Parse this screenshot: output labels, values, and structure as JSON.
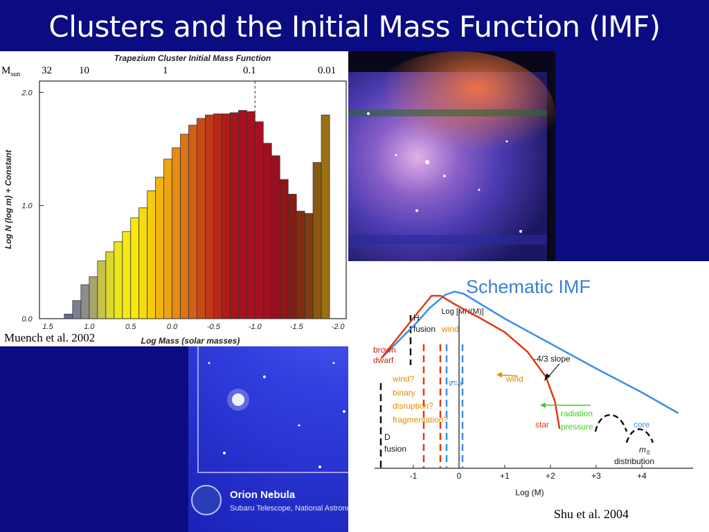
{
  "slide": {
    "title": "Clusters and the Initial Mass Function (IMF)"
  },
  "left_chart": {
    "credit": "Muench et al. 2002",
    "msun_label": "M",
    "msun_sub": "sun",
    "mass_ticks_top": [
      "32",
      "10",
      "1",
      "0.1",
      "0.01"
    ],
    "chart_data": {
      "type": "bar",
      "title": "Trapezium Cluster Initial Mass Function",
      "xlabel": "Log Mass (solar masses)",
      "ylabel": "Log N (log m) + Constant",
      "xlim": [
        1.6,
        -2.1
      ],
      "ylim": [
        0,
        2.1
      ],
      "x_tick_labels": [
        "1.5",
        "1.0",
        "0.5",
        "0.0",
        "-0.5",
        "-1.0",
        "-1.5",
        "-2.0"
      ],
      "y_tick_labels": [
        "0.0",
        "1.0",
        "2.0"
      ],
      "grid": false,
      "bin_width": 0.1,
      "x": [
        1.25,
        1.15,
        1.05,
        0.95,
        0.85,
        0.75,
        0.65,
        0.55,
        0.45,
        0.35,
        0.25,
        0.15,
        0.05,
        -0.05,
        -0.15,
        -0.25,
        -0.35,
        -0.45,
        -0.55,
        -0.65,
        -0.75,
        -0.85,
        -0.95,
        -1.05,
        -1.15,
        -1.25,
        -1.35,
        -1.45,
        -1.55,
        -1.65,
        -1.75,
        -1.85
      ],
      "values": [
        0.04,
        0.16,
        0.3,
        0.37,
        0.51,
        0.59,
        0.68,
        0.77,
        0.89,
        0.98,
        1.13,
        1.25,
        1.41,
        1.51,
        1.63,
        1.71,
        1.77,
        1.8,
        1.81,
        1.81,
        1.82,
        1.84,
        1.83,
        1.74,
        1.55,
        1.44,
        1.23,
        1.1,
        0.95,
        0.93,
        1.38,
        1.8
      ],
      "bar_colors": [
        "#6a6a9a",
        "#7d7d98",
        "#8e8e88",
        "#a8a46a",
        "#c8c24a",
        "#dcd830",
        "#ece61c",
        "#f4ea10",
        "#f8e80c",
        "#f6dc0c",
        "#f4cc0c",
        "#f0b40c",
        "#eca410",
        "#e68c12",
        "#dc7414",
        "#d26016",
        "#c84c18",
        "#c03818",
        "#b82818",
        "#b01c18",
        "#a81418",
        "#a81020",
        "#a81020",
        "#a81020",
        "#a01020",
        "#981020",
        "#901418",
        "#881c14",
        "#822c10",
        "#7e3c10",
        "#8a5a12",
        "#9a7014"
      ],
      "reference_line_x": -1.0
    }
  },
  "orion": {
    "caption_title": "Orion Nebula",
    "caption_sub": "Subaru Telescope, National Astronomical Observatory of Japan"
  },
  "schematic": {
    "title": "Schematic IMF",
    "credit": "Shu et al. 2004",
    "chart_data": {
      "type": "line",
      "xlabel": "Log (M)",
      "ylabel": "Log [MN(M)]",
      "x_ticks": [
        -1,
        0,
        1,
        2,
        3,
        4
      ],
      "x_tick_labels": [
        "-1",
        "0",
        "+1",
        "+2",
        "+3",
        "+4"
      ],
      "xlim": [
        -1.65,
        4.9
      ],
      "series": [
        {
          "color": "#3a8ee6",
          "x": [
            -1.7,
            -0.95,
            -0.65,
            -0.3,
            -0.1,
            0.1,
            1.0,
            2.0,
            3.0,
            4.0,
            4.8
          ],
          "y": [
            1.2,
            1.53,
            1.68,
            1.81,
            1.84,
            1.82,
            1.58,
            1.34,
            1.1,
            0.87,
            0.67
          ]
        },
        {
          "color": "#e03a10",
          "x": [
            -1.7,
            -0.9,
            -0.6,
            -0.4,
            -0.1,
            0.4,
            1.0,
            1.5,
            1.9,
            2.1,
            2.2
          ],
          "y": [
            1.2,
            1.64,
            1.8,
            1.8,
            1.72,
            1.6,
            1.45,
            1.26,
            1.02,
            0.78,
            0.52
          ]
        }
      ],
      "annotations": {
        "h_fusion_1": "H",
        "h_fusion_2": "fusion",
        "wind_top": "wind",
        "brown_1": "brown",
        "brown_2": "dwarf",
        "wind_q": "wind?",
        "binary": "binary",
        "disruption": "disruption?",
        "fragmentation": "fragmentation?",
        "va": "v=a",
        "wind_mid": "wind",
        "slope": "-4/3 slope",
        "radiation": "radiation",
        "pressure": "pressure",
        "star": "star",
        "core": "core",
        "m0": "m",
        "m0_sub": "0",
        "distribution": "distribution",
        "d_fusion_1": "D",
        "d_fusion_2": "fusion"
      }
    }
  },
  "colors": {
    "slide_bg": "#0b0b82",
    "star_curve": "#e03a10",
    "core_curve": "#3a8ee6",
    "wind_orange": "#e68a00",
    "radiation_green": "#3fcf1f",
    "schematic_title": "#3b7fd6"
  }
}
